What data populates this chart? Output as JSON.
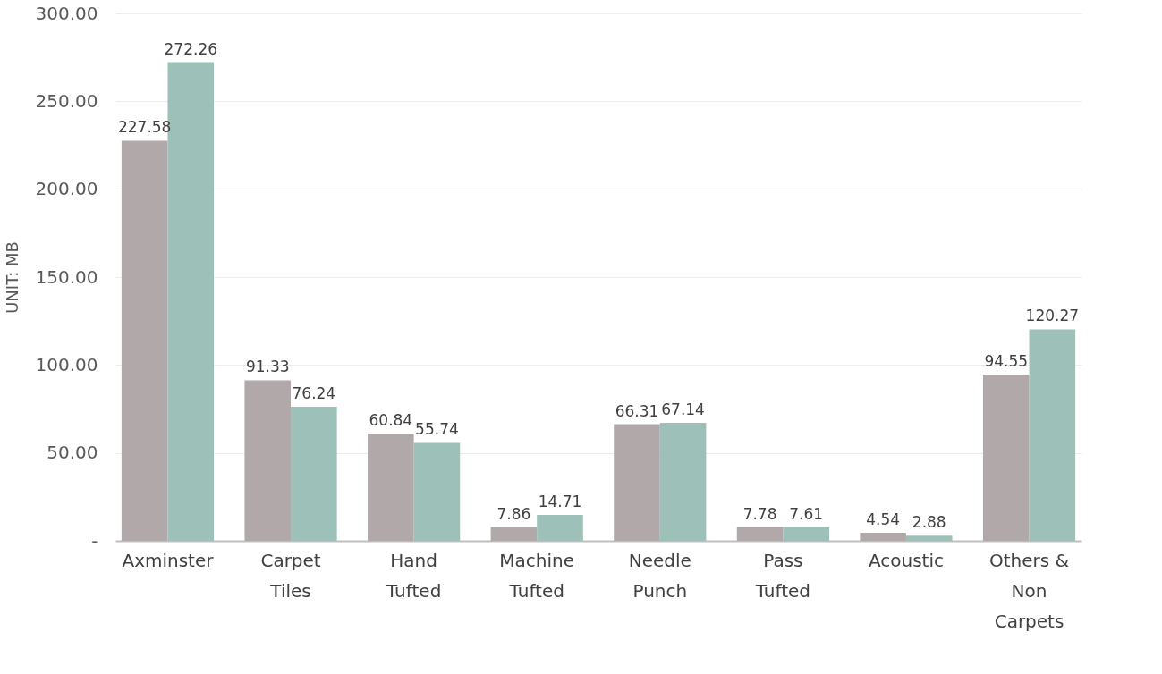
{
  "chart_data": {
    "type": "bar",
    "categories": [
      "Axminster",
      "Carpet Tiles",
      "Hand Tufted",
      "Machine Tufted",
      "Needle Punch",
      "Pass Tufted",
      "Acoustic",
      "Others & Non Carpets"
    ],
    "series": [
      {
        "color": "#b1a9a9",
        "values": [
          227.58,
          91.33,
          60.84,
          7.86,
          66.31,
          7.78,
          4.54,
          94.55
        ]
      },
      {
        "color": "#9dc0b8",
        "values": [
          272.26,
          76.24,
          55.74,
          14.71,
          67.14,
          7.61,
          2.88,
          120.27
        ]
      }
    ],
    "ylabel": "UNIT: MB",
    "ylim": [
      0,
      300
    ],
    "yticks": [
      {
        "value": 0,
        "label": "-"
      },
      {
        "value": 50,
        "label": "50.00"
      },
      {
        "value": 100,
        "label": "100.00"
      },
      {
        "value": 150,
        "label": "150.00"
      },
      {
        "value": 200,
        "label": "200.00"
      },
      {
        "value": 250,
        "label": "250.00"
      },
      {
        "value": 300,
        "label": "300.00"
      }
    ],
    "grid": "y",
    "legend": false,
    "data_labels": true
  }
}
